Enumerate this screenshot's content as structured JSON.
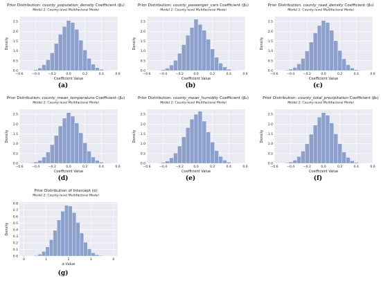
{
  "panels": [
    {
      "id": "a",
      "caption": "(a)",
      "chart_data": {
        "type": "bar",
        "title_prefix": "Prior Distribution: ",
        "title_var": "county_population_density",
        "title_suffix": " Coefficient (β₁)",
        "subtitle": "Model 2: County-level Multifactoral Model",
        "xlabel": "Coefficient Value",
        "ylabel": "Density",
        "xlim": [
          -0.6,
          0.6
        ],
        "ylim": [
          0,
          2.75
        ],
        "xticks": [
          -0.6,
          -0.4,
          -0.2,
          0.0,
          0.2,
          0.4,
          0.6
        ],
        "xtick_labels": [
          "−0.6",
          "−0.4",
          "−0.2",
          "0.0",
          "0.2",
          "0.4",
          "0.6"
        ],
        "yticks": [
          0.0,
          0.5,
          1.0,
          1.5,
          2.0,
          2.5
        ],
        "ytick_labels": [
          "0.0",
          "0.5",
          "1.0",
          "1.5",
          "2.0",
          "2.5"
        ],
        "bin_width": 0.05,
        "bins": [
          {
            "x": -0.45,
            "y": 0.02
          },
          {
            "x": -0.4,
            "y": 0.05
          },
          {
            "x": -0.35,
            "y": 0.13
          },
          {
            "x": -0.3,
            "y": 0.3
          },
          {
            "x": -0.25,
            "y": 0.55
          },
          {
            "x": -0.2,
            "y": 0.9
          },
          {
            "x": -0.15,
            "y": 1.38
          },
          {
            "x": -0.1,
            "y": 1.85
          },
          {
            "x": -0.05,
            "y": 2.25
          },
          {
            "x": 0.0,
            "y": 2.55
          },
          {
            "x": 0.05,
            "y": 2.45
          },
          {
            "x": 0.1,
            "y": 2.1
          },
          {
            "x": 0.15,
            "y": 1.55
          },
          {
            "x": 0.2,
            "y": 1.05
          },
          {
            "x": 0.25,
            "y": 0.62
          },
          {
            "x": 0.3,
            "y": 0.33
          },
          {
            "x": 0.35,
            "y": 0.15
          },
          {
            "x": 0.4,
            "y": 0.06
          },
          {
            "x": 0.45,
            "y": 0.02
          }
        ],
        "grid": true
      }
    },
    {
      "id": "b",
      "caption": "(b)",
      "chart_data": {
        "type": "bar",
        "title_prefix": "Prior Distribution: ",
        "title_var": "county_passenger_cars",
        "title_suffix": " Coefficient (β₂)",
        "subtitle": "Model 2: County-level Multifactoral Model",
        "xlabel": "Coefficient Value",
        "ylabel": "Density",
        "xlim": [
          -0.6,
          0.6
        ],
        "ylim": [
          0,
          2.75
        ],
        "xticks": [
          -0.6,
          -0.4,
          -0.2,
          0.0,
          0.2,
          0.4,
          0.6
        ],
        "xtick_labels": [
          "−0.6",
          "−0.4",
          "−0.2",
          "0.0",
          "0.2",
          "0.4",
          "0.6"
        ],
        "yticks": [
          0.0,
          0.5,
          1.0,
          1.5,
          2.0,
          2.5
        ],
        "ytick_labels": [
          "0.0",
          "0.5",
          "1.0",
          "1.5",
          "2.0",
          "2.5"
        ],
        "bin_width": 0.05,
        "bins": [
          {
            "x": -0.45,
            "y": 0.02
          },
          {
            "x": -0.4,
            "y": 0.05
          },
          {
            "x": -0.35,
            "y": 0.12
          },
          {
            "x": -0.3,
            "y": 0.28
          },
          {
            "x": -0.25,
            "y": 0.52
          },
          {
            "x": -0.2,
            "y": 0.88
          },
          {
            "x": -0.15,
            "y": 1.32
          },
          {
            "x": -0.1,
            "y": 1.8
          },
          {
            "x": -0.05,
            "y": 2.2
          },
          {
            "x": 0.0,
            "y": 2.62
          },
          {
            "x": 0.05,
            "y": 2.35
          },
          {
            "x": 0.1,
            "y": 2.05
          },
          {
            "x": 0.15,
            "y": 1.6
          },
          {
            "x": 0.2,
            "y": 1.1
          },
          {
            "x": 0.25,
            "y": 0.68
          },
          {
            "x": 0.3,
            "y": 0.38
          },
          {
            "x": 0.35,
            "y": 0.18
          },
          {
            "x": 0.4,
            "y": 0.07
          },
          {
            "x": 0.45,
            "y": 0.02
          }
        ],
        "grid": true
      }
    },
    {
      "id": "c",
      "caption": "(c)",
      "chart_data": {
        "type": "bar",
        "title_prefix": "Prior Distribution: ",
        "title_var": "county_road_density",
        "title_suffix": " Coefficient (β₃)",
        "subtitle": "Model 2: County-level Multifactoral Model",
        "xlabel": "Coefficient Value",
        "ylabel": "Density",
        "xlim": [
          -0.6,
          0.6
        ],
        "ylim": [
          0,
          2.75
        ],
        "xticks": [
          -0.6,
          -0.4,
          -0.2,
          0.0,
          0.2,
          0.4,
          0.6
        ],
        "xtick_labels": [
          "−0.6",
          "−0.4",
          "−0.2",
          "0.0",
          "0.2",
          "0.4",
          "0.6"
        ],
        "yticks": [
          0.0,
          0.5,
          1.0,
          1.5,
          2.0,
          2.5
        ],
        "ytick_labels": [
          "0.0",
          "0.5",
          "1.0",
          "1.5",
          "2.0",
          "2.5"
        ],
        "bin_width": 0.05,
        "bins": [
          {
            "x": -0.5,
            "y": 0.01
          },
          {
            "x": -0.45,
            "y": 0.03
          },
          {
            "x": -0.4,
            "y": 0.07
          },
          {
            "x": -0.35,
            "y": 0.16
          },
          {
            "x": -0.3,
            "y": 0.34
          },
          {
            "x": -0.25,
            "y": 0.62
          },
          {
            "x": -0.2,
            "y": 1.0
          },
          {
            "x": -0.15,
            "y": 1.45
          },
          {
            "x": -0.1,
            "y": 1.92
          },
          {
            "x": -0.05,
            "y": 2.3
          },
          {
            "x": 0.0,
            "y": 2.55
          },
          {
            "x": 0.05,
            "y": 2.45
          },
          {
            "x": 0.1,
            "y": 2.05
          },
          {
            "x": 0.15,
            "y": 1.52
          },
          {
            "x": 0.2,
            "y": 1.02
          },
          {
            "x": 0.25,
            "y": 0.6
          },
          {
            "x": 0.3,
            "y": 0.3
          },
          {
            "x": 0.35,
            "y": 0.13
          },
          {
            "x": 0.4,
            "y": 0.05
          },
          {
            "x": 0.45,
            "y": 0.02
          }
        ],
        "grid": true
      }
    },
    {
      "id": "d",
      "caption": "(d)",
      "chart_data": {
        "type": "bar",
        "title_prefix": "Prior Distribution: ",
        "title_var": "county_mean_temperature",
        "title_suffix": " Coefficient (β₄)",
        "subtitle": "Model 2: County-level Multifactoral Model",
        "xlabel": "Coefficient Value",
        "ylabel": "Density",
        "xlim": [
          -0.6,
          0.6
        ],
        "ylim": [
          0,
          2.75
        ],
        "xticks": [
          -0.6,
          -0.4,
          -0.2,
          0.0,
          0.2,
          0.4,
          0.6
        ],
        "xtick_labels": [
          "−0.6",
          "−0.4",
          "−0.2",
          "0.0",
          "0.2",
          "0.4",
          "0.6"
        ],
        "yticks": [
          0.0,
          0.5,
          1.0,
          1.5,
          2.0,
          2.5
        ],
        "ytick_labels": [
          "0.0",
          "0.5",
          "1.0",
          "1.5",
          "2.0",
          "2.5"
        ],
        "bin_width": 0.05,
        "bins": [
          {
            "x": -0.45,
            "y": 0.03
          },
          {
            "x": -0.4,
            "y": 0.07
          },
          {
            "x": -0.35,
            "y": 0.15
          },
          {
            "x": -0.3,
            "y": 0.32
          },
          {
            "x": -0.25,
            "y": 0.58
          },
          {
            "x": -0.2,
            "y": 0.95
          },
          {
            "x": -0.15,
            "y": 1.42
          },
          {
            "x": -0.1,
            "y": 1.9
          },
          {
            "x": -0.05,
            "y": 2.3
          },
          {
            "x": 0.0,
            "y": 2.58
          },
          {
            "x": 0.05,
            "y": 2.4
          },
          {
            "x": 0.1,
            "y": 2.05
          },
          {
            "x": 0.15,
            "y": 1.55
          },
          {
            "x": 0.2,
            "y": 1.05
          },
          {
            "x": 0.25,
            "y": 0.62
          },
          {
            "x": 0.3,
            "y": 0.32
          },
          {
            "x": 0.35,
            "y": 0.15
          },
          {
            "x": 0.4,
            "y": 0.06
          },
          {
            "x": 0.45,
            "y": 0.02
          }
        ],
        "grid": true
      }
    },
    {
      "id": "e",
      "caption": "(e)",
      "chart_data": {
        "type": "bar",
        "title_prefix": "Prior Distribution: ",
        "title_var": "county_mean_humidity",
        "title_suffix": " Coefficient (β₅)",
        "subtitle": "Model 2: County-level Multifactoral Model",
        "xlabel": "Coefficient Value",
        "ylabel": "Density",
        "xlim": [
          -0.6,
          0.6
        ],
        "ylim": [
          0,
          2.75
        ],
        "xticks": [
          -0.6,
          -0.4,
          -0.2,
          0.0,
          0.2,
          0.4,
          0.6
        ],
        "xtick_labels": [
          "−0.6",
          "−0.4",
          "−0.2",
          "0.0",
          "0.2",
          "0.4",
          "0.6"
        ],
        "yticks": [
          0.0,
          0.5,
          1.0,
          1.5,
          2.0,
          2.5
        ],
        "ytick_labels": [
          "0.0",
          "0.5",
          "1.0",
          "1.5",
          "2.0",
          "2.5"
        ],
        "bin_width": 0.05,
        "bins": [
          {
            "x": -0.45,
            "y": 0.02
          },
          {
            "x": -0.4,
            "y": 0.05
          },
          {
            "x": -0.35,
            "y": 0.12
          },
          {
            "x": -0.3,
            "y": 0.28
          },
          {
            "x": -0.25,
            "y": 0.52
          },
          {
            "x": -0.2,
            "y": 0.88
          },
          {
            "x": -0.15,
            "y": 1.35
          },
          {
            "x": -0.1,
            "y": 1.82
          },
          {
            "x": -0.05,
            "y": 2.25
          },
          {
            "x": 0.0,
            "y": 2.5
          },
          {
            "x": 0.05,
            "y": 2.65
          },
          {
            "x": 0.1,
            "y": 2.15
          },
          {
            "x": 0.15,
            "y": 1.6
          },
          {
            "x": 0.2,
            "y": 1.08
          },
          {
            "x": 0.25,
            "y": 0.65
          },
          {
            "x": 0.3,
            "y": 0.35
          },
          {
            "x": 0.35,
            "y": 0.16
          },
          {
            "x": 0.4,
            "y": 0.06
          },
          {
            "x": 0.45,
            "y": 0.02
          }
        ],
        "grid": true
      }
    },
    {
      "id": "f",
      "caption": "(f)",
      "chart_data": {
        "type": "bar",
        "title_prefix": "Prior Distribution: ",
        "title_var": "county_total_precipitation",
        "title_suffix": " Coefficient (β₆)",
        "subtitle": "Model 2: County-level Multifactoral Model",
        "xlabel": "Coefficient Value",
        "ylabel": "Density",
        "xlim": [
          -0.6,
          0.6
        ],
        "ylim": [
          0,
          2.75
        ],
        "xticks": [
          -0.6,
          -0.4,
          -0.2,
          0.0,
          0.2,
          0.4,
          0.6
        ],
        "xtick_labels": [
          "−0.6",
          "−0.4",
          "−0.2",
          "0.0",
          "0.2",
          "0.4",
          "0.6"
        ],
        "yticks": [
          0.0,
          0.5,
          1.0,
          1.5,
          2.0,
          2.5
        ],
        "ytick_labels": [
          "0.0",
          "0.5",
          "1.0",
          "1.5",
          "2.0",
          "2.5"
        ],
        "bin_width": 0.05,
        "bins": [
          {
            "x": -0.5,
            "y": 0.01
          },
          {
            "x": -0.45,
            "y": 0.03
          },
          {
            "x": -0.4,
            "y": 0.07
          },
          {
            "x": -0.35,
            "y": 0.16
          },
          {
            "x": -0.3,
            "y": 0.35
          },
          {
            "x": -0.25,
            "y": 0.62
          },
          {
            "x": -0.2,
            "y": 1.0
          },
          {
            "x": -0.15,
            "y": 1.48
          },
          {
            "x": -0.1,
            "y": 1.95
          },
          {
            "x": -0.05,
            "y": 2.35
          },
          {
            "x": 0.0,
            "y": 2.58
          },
          {
            "x": 0.05,
            "y": 2.45
          },
          {
            "x": 0.1,
            "y": 2.05
          },
          {
            "x": 0.15,
            "y": 1.5
          },
          {
            "x": 0.2,
            "y": 1.0
          },
          {
            "x": 0.25,
            "y": 0.58
          },
          {
            "x": 0.3,
            "y": 0.3
          },
          {
            "x": 0.35,
            "y": 0.13
          },
          {
            "x": 0.4,
            "y": 0.05
          },
          {
            "x": 0.45,
            "y": 0.02
          }
        ],
        "grid": true
      }
    },
    {
      "id": "g",
      "caption": "(g)",
      "chart_data": {
        "type": "bar",
        "title_prefix": "Prior Distribution of Intercept (α)",
        "title_var": "",
        "title_suffix": "",
        "subtitle": "Model 2: County-level Multifactoral Model",
        "xlabel": "α Value",
        "ylabel": "Density",
        "xlim": [
          -0.2,
          4.2
        ],
        "ylim": [
          0,
          0.82
        ],
        "xticks": [
          0,
          1,
          2,
          3,
          4
        ],
        "xtick_labels": [
          "0",
          "1",
          "2",
          "3",
          "4"
        ],
        "yticks": [
          0.0,
          0.1,
          0.2,
          0.3,
          0.4,
          0.5,
          0.6,
          0.7,
          0.8
        ],
        "ytick_labels": [
          "0.0",
          "0.1",
          "0.2",
          "0.3",
          "0.4",
          "0.5",
          "0.6",
          "0.7",
          "0.8"
        ],
        "bin_width": 0.17,
        "bins": [
          {
            "x": 0.55,
            "y": 0.01
          },
          {
            "x": 0.72,
            "y": 0.03
          },
          {
            "x": 0.89,
            "y": 0.07
          },
          {
            "x": 1.06,
            "y": 0.14
          },
          {
            "x": 1.23,
            "y": 0.25
          },
          {
            "x": 1.4,
            "y": 0.39
          },
          {
            "x": 1.57,
            "y": 0.55
          },
          {
            "x": 1.74,
            "y": 0.68
          },
          {
            "x": 1.91,
            "y": 0.77
          },
          {
            "x": 2.08,
            "y": 0.76
          },
          {
            "x": 2.25,
            "y": 0.66
          },
          {
            "x": 2.42,
            "y": 0.51
          },
          {
            "x": 2.59,
            "y": 0.35
          },
          {
            "x": 2.76,
            "y": 0.21
          },
          {
            "x": 2.93,
            "y": 0.11
          },
          {
            "x": 3.1,
            "y": 0.05
          },
          {
            "x": 3.27,
            "y": 0.02
          },
          {
            "x": 3.44,
            "y": 0.01
          }
        ],
        "grid": true
      }
    }
  ],
  "style": {
    "bar_fill": "#8da0cb",
    "bar_edge": "#ffffff",
    "plot_background": "#eaeaf2",
    "grid_color": "#ffffff",
    "text_color": "#222222"
  }
}
